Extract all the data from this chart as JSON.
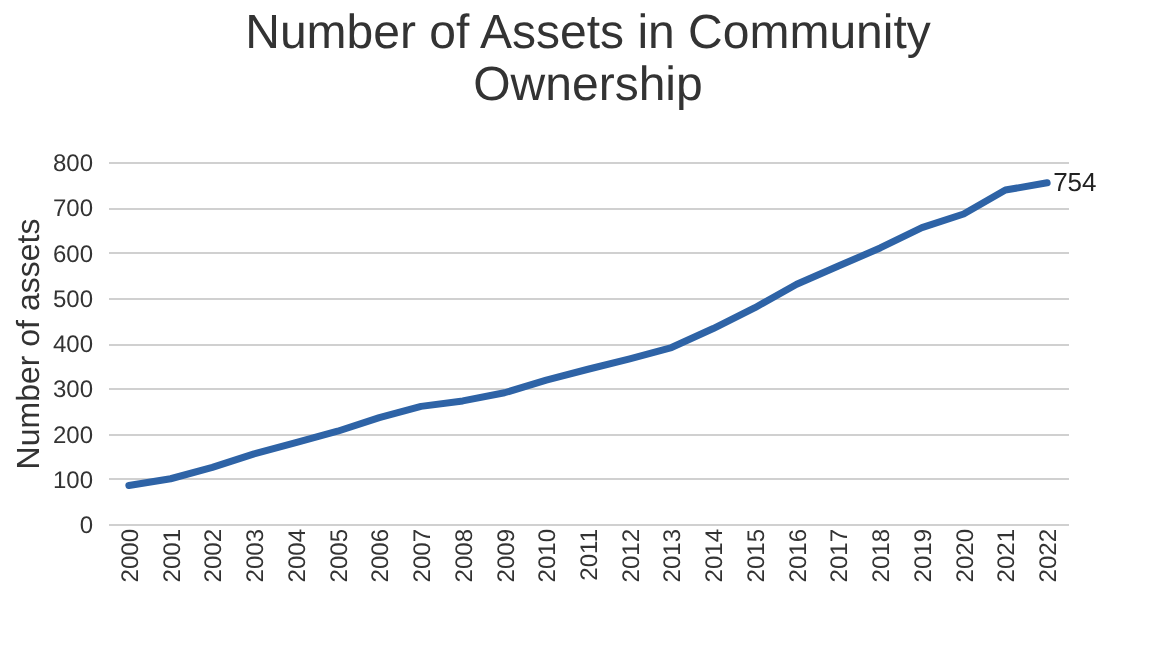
{
  "chart_data": {
    "type": "line",
    "title": "Number of Assets in Community Ownership",
    "ylabel": "Number of assets",
    "categories": [
      "2000",
      "2001",
      "2002",
      "2003",
      "2004",
      "2005",
      "2006",
      "2007",
      "2008",
      "2009",
      "2010",
      "2011",
      "2012",
      "2013",
      "2014",
      "2015",
      "2016",
      "2017",
      "2018",
      "2019",
      "2020",
      "2021",
      "2022"
    ],
    "series": [
      {
        "color": "#2e63a6",
        "values": [
          85,
          100,
          125,
          155,
          180,
          205,
          235,
          260,
          272,
          290,
          318,
          342,
          365,
          390,
          432,
          478,
          530,
          570,
          610,
          655,
          685,
          738,
          754
        ]
      }
    ],
    "ylim": [
      0,
      800
    ],
    "yticks": [
      0,
      100,
      200,
      300,
      400,
      500,
      600,
      700,
      800
    ],
    "grid": "y",
    "legend": false,
    "marker": "none",
    "line_style": "solid",
    "annotations": [
      {
        "text": "754",
        "x": "2022",
        "y": 754
      }
    ]
  }
}
